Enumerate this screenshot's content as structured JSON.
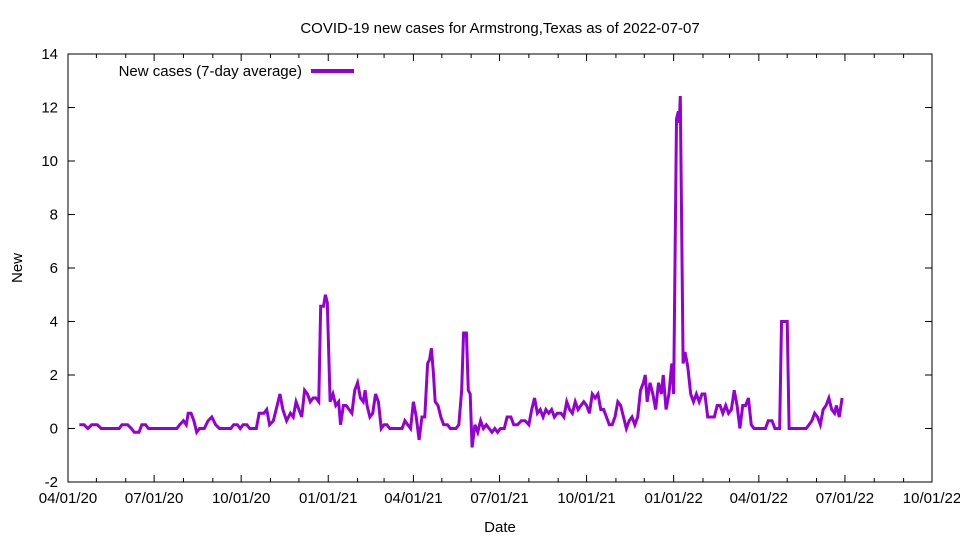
{
  "chart_data": {
    "type": "line",
    "title": "COVID-19 new cases for Armstrong,Texas as of 2022-07-07",
    "xlabel": "Date",
    "ylabel": "New",
    "xlim": [
      "2020-04-01",
      "2022-10-01"
    ],
    "ylim": [
      -2,
      14
    ],
    "xticks": [
      {
        "date": "2020-04-01",
        "label": "04/01/20"
      },
      {
        "date": "2020-07-01",
        "label": "07/01/20"
      },
      {
        "date": "2020-10-01",
        "label": "10/01/20"
      },
      {
        "date": "2021-01-01",
        "label": "01/01/21"
      },
      {
        "date": "2021-04-01",
        "label": "04/01/21"
      },
      {
        "date": "2021-07-01",
        "label": "07/01/21"
      },
      {
        "date": "2021-10-01",
        "label": "10/01/21"
      },
      {
        "date": "2022-01-01",
        "label": "01/01/22"
      },
      {
        "date": "2022-04-01",
        "label": "04/01/22"
      },
      {
        "date": "2022-07-01",
        "label": "07/01/22"
      },
      {
        "date": "2022-10-01",
        "label": "10/01/22"
      }
    ],
    "yticks": [
      -2,
      0,
      2,
      4,
      6,
      8,
      10,
      12,
      14
    ],
    "grid": false,
    "legend_position": "top-left",
    "series": [
      {
        "name": "New cases (7-day average)",
        "color": "#9400d3",
        "points": [
          [
            "2020-04-13",
            0.14
          ],
          [
            "2020-04-18",
            0.14
          ],
          [
            "2020-04-22",
            0
          ],
          [
            "2020-04-26",
            0.14
          ],
          [
            "2020-05-02",
            0.14
          ],
          [
            "2020-05-06",
            0
          ],
          [
            "2020-05-25",
            0
          ],
          [
            "2020-05-28",
            0.14
          ],
          [
            "2020-06-03",
            0.14
          ],
          [
            "2020-06-07",
            0
          ],
          [
            "2020-06-10",
            -0.14
          ],
          [
            "2020-06-15",
            -0.14
          ],
          [
            "2020-06-18",
            0.14
          ],
          [
            "2020-06-22",
            0.14
          ],
          [
            "2020-06-25",
            0
          ],
          [
            "2020-07-25",
            0
          ],
          [
            "2020-07-28",
            0.14
          ],
          [
            "2020-08-01",
            0.29
          ],
          [
            "2020-08-04",
            0.14
          ],
          [
            "2020-08-06",
            0.57
          ],
          [
            "2020-08-09",
            0.57
          ],
          [
            "2020-08-12",
            0.29
          ],
          [
            "2020-08-15",
            -0.14
          ],
          [
            "2020-08-18",
            0
          ],
          [
            "2020-08-23",
            0
          ],
          [
            "2020-08-27",
            0.29
          ],
          [
            "2020-08-31",
            0.43
          ],
          [
            "2020-09-04",
            0.14
          ],
          [
            "2020-09-08",
            0
          ],
          [
            "2020-09-20",
            0
          ],
          [
            "2020-09-23",
            0.14
          ],
          [
            "2020-09-27",
            0.14
          ],
          [
            "2020-09-30",
            0
          ],
          [
            "2020-10-03",
            0.14
          ],
          [
            "2020-10-07",
            0.14
          ],
          [
            "2020-10-10",
            0
          ],
          [
            "2020-10-17",
            0
          ],
          [
            "2020-10-20",
            0.57
          ],
          [
            "2020-10-25",
            0.57
          ],
          [
            "2020-10-28",
            0.71
          ],
          [
            "2020-10-31",
            0.14
          ],
          [
            "2020-11-04",
            0.29
          ],
          [
            "2020-11-08",
            0.86
          ],
          [
            "2020-11-11",
            1.29
          ],
          [
            "2020-11-14",
            0.71
          ],
          [
            "2020-11-18",
            0.29
          ],
          [
            "2020-11-22",
            0.57
          ],
          [
            "2020-11-25",
            0.43
          ],
          [
            "2020-11-28",
            1.0
          ],
          [
            "2020-12-01",
            0.71
          ],
          [
            "2020-12-04",
            0.43
          ],
          [
            "2020-12-07",
            1.43
          ],
          [
            "2020-12-10",
            1.29
          ],
          [
            "2020-12-13",
            1.0
          ],
          [
            "2020-12-16",
            1.14
          ],
          [
            "2020-12-19",
            1.14
          ],
          [
            "2020-12-22",
            1.0
          ],
          [
            "2020-12-24",
            4.57
          ],
          [
            "2020-12-27",
            4.57
          ],
          [
            "2020-12-29",
            5.0
          ],
          [
            "2020-12-31",
            4.71
          ],
          [
            "2021-01-03",
            1.0
          ],
          [
            "2021-01-06",
            1.29
          ],
          [
            "2021-01-09",
            0.86
          ],
          [
            "2021-01-12",
            1.0
          ],
          [
            "2021-01-14",
            0.14
          ],
          [
            "2021-01-17",
            0.86
          ],
          [
            "2021-01-20",
            0.86
          ],
          [
            "2021-01-23",
            0.71
          ],
          [
            "2021-01-26",
            0.57
          ],
          [
            "2021-01-29",
            1.43
          ],
          [
            "2021-02-01",
            1.71
          ],
          [
            "2021-02-04",
            1.14
          ],
          [
            "2021-02-07",
            1.0
          ],
          [
            "2021-02-09",
            1.43
          ],
          [
            "2021-02-11",
            0.86
          ],
          [
            "2021-02-14",
            0.43
          ],
          [
            "2021-02-17",
            0.57
          ],
          [
            "2021-02-20",
            1.29
          ],
          [
            "2021-02-23",
            1.0
          ],
          [
            "2021-02-26",
            0
          ],
          [
            "2021-03-01",
            0.14
          ],
          [
            "2021-03-04",
            0.14
          ],
          [
            "2021-03-07",
            0
          ],
          [
            "2021-03-20",
            0
          ],
          [
            "2021-03-23",
            0.29
          ],
          [
            "2021-03-26",
            0.14
          ],
          [
            "2021-03-29",
            0
          ],
          [
            "2021-04-01",
            1.0
          ],
          [
            "2021-04-04",
            0.43
          ],
          [
            "2021-04-07",
            -0.43
          ],
          [
            "2021-04-10",
            0.43
          ],
          [
            "2021-04-13",
            0.43
          ],
          [
            "2021-04-16",
            2.43
          ],
          [
            "2021-04-18",
            2.57
          ],
          [
            "2021-04-20",
            3.0
          ],
          [
            "2021-04-22",
            2.14
          ],
          [
            "2021-04-24",
            1.0
          ],
          [
            "2021-04-27",
            0.86
          ],
          [
            "2021-04-30",
            0.43
          ],
          [
            "2021-05-03",
            0.14
          ],
          [
            "2021-05-07",
            0.14
          ],
          [
            "2021-05-10",
            0
          ],
          [
            "2021-05-16",
            0
          ],
          [
            "2021-05-19",
            0.14
          ],
          [
            "2021-05-22",
            1.43
          ],
          [
            "2021-05-24",
            3.57
          ],
          [
            "2021-05-27",
            3.57
          ],
          [
            "2021-05-29",
            1.43
          ],
          [
            "2021-05-31",
            1.29
          ],
          [
            "2021-06-02",
            -0.71
          ],
          [
            "2021-06-05",
            0.14
          ],
          [
            "2021-06-08",
            -0.14
          ],
          [
            "2021-06-11",
            0.29
          ],
          [
            "2021-06-14",
            0
          ],
          [
            "2021-06-17",
            0.14
          ],
          [
            "2021-06-20",
            0
          ],
          [
            "2021-06-23",
            -0.14
          ],
          [
            "2021-06-26",
            0
          ],
          [
            "2021-06-29",
            -0.14
          ],
          [
            "2021-07-02",
            0
          ],
          [
            "2021-07-06",
            0
          ],
          [
            "2021-07-09",
            0.43
          ],
          [
            "2021-07-13",
            0.43
          ],
          [
            "2021-07-16",
            0.14
          ],
          [
            "2021-07-20",
            0.14
          ],
          [
            "2021-07-24",
            0.29
          ],
          [
            "2021-07-28",
            0.29
          ],
          [
            "2021-08-01",
            0.14
          ],
          [
            "2021-08-04",
            0.71
          ],
          [
            "2021-08-07",
            1.14
          ],
          [
            "2021-08-10",
            0.57
          ],
          [
            "2021-08-13",
            0.71
          ],
          [
            "2021-08-16",
            0.43
          ],
          [
            "2021-08-19",
            0.71
          ],
          [
            "2021-08-22",
            0.57
          ],
          [
            "2021-08-25",
            0.71
          ],
          [
            "2021-08-28",
            0.43
          ],
          [
            "2021-08-31",
            0.57
          ],
          [
            "2021-09-04",
            0.57
          ],
          [
            "2021-09-07",
            0.43
          ],
          [
            "2021-09-10",
            1.0
          ],
          [
            "2021-09-13",
            0.71
          ],
          [
            "2021-09-16",
            0.57
          ],
          [
            "2021-09-19",
            1.0
          ],
          [
            "2021-09-22",
            0.71
          ],
          [
            "2021-09-25",
            0.86
          ],
          [
            "2021-09-28",
            1.0
          ],
          [
            "2021-10-01",
            0.86
          ],
          [
            "2021-10-04",
            0.57
          ],
          [
            "2021-10-07",
            1.29
          ],
          [
            "2021-10-10",
            1.14
          ],
          [
            "2021-10-13",
            1.29
          ],
          [
            "2021-10-16",
            0.71
          ],
          [
            "2021-10-19",
            0.71
          ],
          [
            "2021-10-22",
            0.43
          ],
          [
            "2021-10-25",
            0.14
          ],
          [
            "2021-10-28",
            0.14
          ],
          [
            "2021-10-31",
            0.43
          ],
          [
            "2021-11-03",
            1.0
          ],
          [
            "2021-11-06",
            0.86
          ],
          [
            "2021-11-09",
            0.43
          ],
          [
            "2021-11-12",
            0
          ],
          [
            "2021-11-15",
            0.29
          ],
          [
            "2021-11-18",
            0.43
          ],
          [
            "2021-11-21",
            0.14
          ],
          [
            "2021-11-24",
            0.43
          ],
          [
            "2021-11-27",
            1.43
          ],
          [
            "2021-11-30",
            1.71
          ],
          [
            "2021-12-02",
            2.0
          ],
          [
            "2021-12-04",
            1.0
          ],
          [
            "2021-12-07",
            1.71
          ],
          [
            "2021-12-10",
            1.29
          ],
          [
            "2021-12-13",
            0.71
          ],
          [
            "2021-12-16",
            1.71
          ],
          [
            "2021-12-19",
            1.29
          ],
          [
            "2021-12-21",
            2.0
          ],
          [
            "2021-12-24",
            0.71
          ],
          [
            "2021-12-27",
            1.29
          ],
          [
            "2021-12-30",
            2.43
          ],
          [
            "2022-01-01",
            1.29
          ],
          [
            "2022-01-04",
            11.57
          ],
          [
            "2022-01-06",
            11.86
          ],
          [
            "2022-01-07",
            11.43
          ],
          [
            "2022-01-08",
            12.43
          ],
          [
            "2022-01-11",
            2.43
          ],
          [
            "2022-01-13",
            2.86
          ],
          [
            "2022-01-16",
            2.29
          ],
          [
            "2022-01-19",
            1.29
          ],
          [
            "2022-01-22",
            1.0
          ],
          [
            "2022-01-25",
            1.29
          ],
          [
            "2022-01-28",
            1.0
          ],
          [
            "2022-01-31",
            1.29
          ],
          [
            "2022-02-03",
            1.29
          ],
          [
            "2022-02-06",
            0.43
          ],
          [
            "2022-02-13",
            0.43
          ],
          [
            "2022-02-16",
            0.86
          ],
          [
            "2022-02-19",
            0.86
          ],
          [
            "2022-02-22",
            0.57
          ],
          [
            "2022-02-25",
            0.86
          ],
          [
            "2022-02-28",
            0.57
          ],
          [
            "2022-03-03",
            0.71
          ],
          [
            "2022-03-06",
            1.43
          ],
          [
            "2022-03-09",
            0.86
          ],
          [
            "2022-03-12",
            0
          ],
          [
            "2022-03-15",
            0.86
          ],
          [
            "2022-03-18",
            0.86
          ],
          [
            "2022-03-21",
            1.14
          ],
          [
            "2022-03-24",
            0.14
          ],
          [
            "2022-03-27",
            0
          ],
          [
            "2022-04-08",
            0
          ],
          [
            "2022-04-11",
            0.29
          ],
          [
            "2022-04-15",
            0.29
          ],
          [
            "2022-04-18",
            0
          ],
          [
            "2022-04-23",
            0
          ],
          [
            "2022-04-25",
            4.0
          ],
          [
            "2022-05-01",
            4.0
          ],
          [
            "2022-05-03",
            0
          ],
          [
            "2022-05-21",
            0
          ],
          [
            "2022-05-24",
            0.14
          ],
          [
            "2022-05-27",
            0.29
          ],
          [
            "2022-05-30",
            0.57
          ],
          [
            "2022-06-02",
            0.43
          ],
          [
            "2022-06-05",
            0.14
          ],
          [
            "2022-06-08",
            0.71
          ],
          [
            "2022-06-11",
            0.86
          ],
          [
            "2022-06-14",
            1.14
          ],
          [
            "2022-06-17",
            0.71
          ],
          [
            "2022-06-20",
            0.57
          ],
          [
            "2022-06-22",
            0.86
          ],
          [
            "2022-06-25",
            0.43
          ],
          [
            "2022-06-28",
            1.14
          ]
        ]
      }
    ]
  }
}
